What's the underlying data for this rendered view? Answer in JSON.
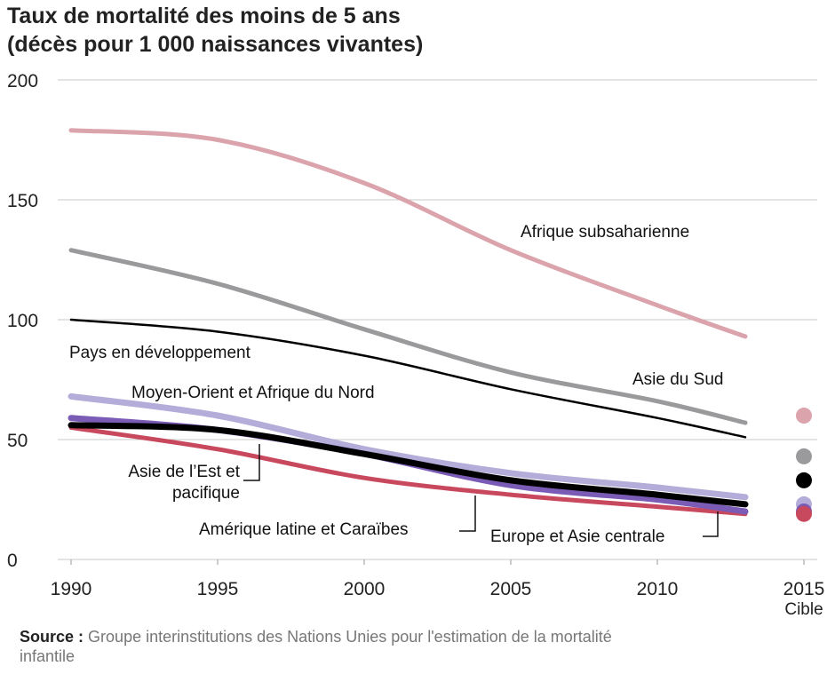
{
  "chart_data": {
    "type": "line",
    "title": "Taux de mortalité des moins de 5 ans",
    "subtitle": "(décès pour 1 000 naissances vivantes)",
    "x": [
      1990,
      1995,
      2000,
      2005,
      2010,
      2013
    ],
    "xlim": [
      1990,
      2015
    ],
    "xticks": [
      1990,
      1995,
      2000,
      2005,
      2010,
      2015
    ],
    "ylim": [
      0,
      200
    ],
    "yticks": [
      0,
      50,
      100,
      150,
      200
    ],
    "grid": true,
    "target_x": 2015,
    "target_label": "Cible",
    "series": [
      {
        "name": "Afrique subsaharienne",
        "color": "#dba3ab",
        "values": [
          179,
          175,
          157,
          129,
          106,
          93
        ],
        "target": 60
      },
      {
        "name": "Asie du Sud",
        "color": "#9a9a9c",
        "values": [
          129,
          115,
          96,
          78,
          66,
          57
        ],
        "target": 43
      },
      {
        "name": "Pays en développement",
        "color": "#000000",
        "values": [
          100,
          95,
          85,
          71,
          59,
          51
        ],
        "target": 33
      },
      {
        "name": "Moyen-Orient et Afrique du Nord",
        "color": "#b4acd9",
        "values": [
          68,
          60,
          46,
          36,
          30,
          26
        ],
        "target": 23
      },
      {
        "name": "Asie de l’Est et pacifique",
        "color": "#7a5bb5",
        "values": [
          59,
          54,
          44,
          31,
          25,
          20
        ],
        "target": 20
      },
      {
        "name": "Europe et Asie centrale",
        "color": "#000000",
        "values": [
          56,
          54,
          44,
          33,
          27,
          23
        ],
        "target": null
      },
      {
        "name": "Amérique latine et Caraïbes",
        "color": "#c8485e",
        "values": [
          55,
          46,
          34,
          27,
          22,
          19
        ],
        "target": 19
      }
    ],
    "source_label": "Source :",
    "source": "Groupe interinstitutions des Nations Unies pour l'estimation de la mortalité infantile"
  }
}
